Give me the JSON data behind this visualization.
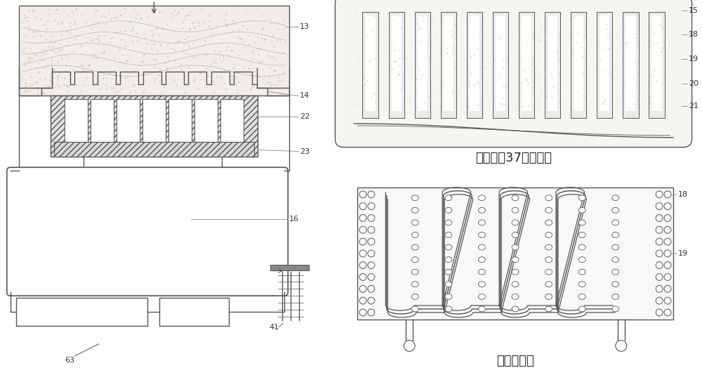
{
  "bg_color": "#ffffff",
  "lc": "#555555",
  "lc2": "#888888",
  "text_cooling": "冷却室（37）剪面图",
  "text_fin": "翅片平面图",
  "font_label": 8,
  "font_chinese": 13
}
